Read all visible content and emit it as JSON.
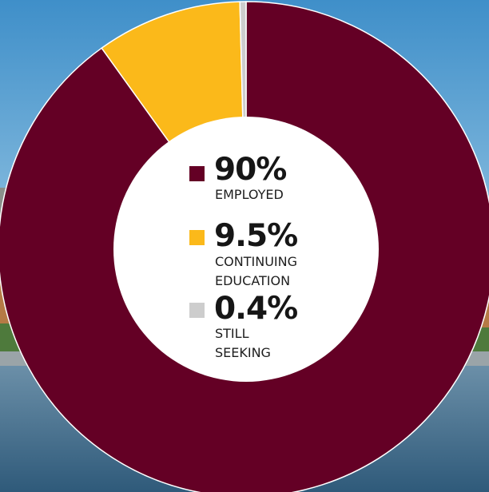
{
  "chart_data": {
    "type": "pie",
    "donut": true,
    "slices": [
      {
        "label": "EMPLOYED",
        "value": 90,
        "display": "90%",
        "color": "#640025"
      },
      {
        "label": "CONTINUING\nEDUCATION",
        "value": 9.5,
        "display": "9.5%",
        "color": "#FBB91A"
      },
      {
        "label": "STILL SEEKING",
        "value": 0.4,
        "display": "0.4%",
        "color": "#CDCDCD"
      }
    ],
    "legend_placement": "center"
  }
}
